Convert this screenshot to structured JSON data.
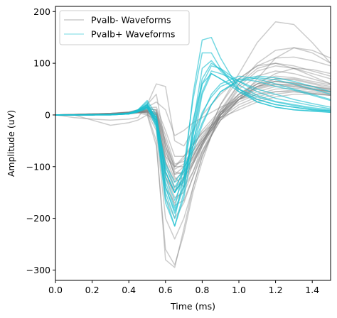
{
  "chart_data": {
    "type": "line",
    "xlabel": "Time (ms)",
    "ylabel": "Amplitude (uV)",
    "xlim": [
      0.0,
      1.5
    ],
    "ylim": [
      -320,
      210
    ],
    "xticks": [
      0.0,
      0.2,
      0.4,
      0.6,
      0.8,
      1.0,
      1.2,
      1.4
    ],
    "xtick_labels": [
      "0.0",
      "0.2",
      "0.4",
      "0.6",
      "0.8",
      "1.0",
      "1.2",
      "1.4"
    ],
    "yticks": [
      -300,
      -200,
      -100,
      0,
      100,
      200
    ],
    "ytick_labels": [
      "−300",
      "−200",
      "−100",
      "0",
      "100",
      "200"
    ],
    "grid": false,
    "legend": {
      "placement": "top-left"
    },
    "colors": {
      "pvalb_minus": "#808080",
      "pvalb_plus": "#17becf",
      "axes": "#000000"
    },
    "x": [
      0.0,
      0.1,
      0.2,
      0.3,
      0.4,
      0.45,
      0.5,
      0.55,
      0.6,
      0.65,
      0.7,
      0.75,
      0.8,
      0.85,
      0.9,
      1.0,
      1.1,
      1.2,
      1.3,
      1.4,
      1.5
    ],
    "series": [
      {
        "name": "Pvalb- Waveforms",
        "color": "#808080",
        "waveforms": [
          [
            0,
            1,
            2,
            3,
            5,
            8,
            15,
            25,
            10,
            -40,
            -30,
            -15,
            -5,
            5,
            15,
            30,
            40,
            45,
            45,
            42,
            38
          ],
          [
            0,
            0,
            1,
            2,
            4,
            8,
            10,
            5,
            -60,
            -100,
            -80,
            -55,
            -35,
            -20,
            -5,
            10,
            25,
            35,
            40,
            40,
            38
          ],
          [
            0,
            1,
            2,
            3,
            5,
            8,
            12,
            10,
            -40,
            -95,
            -90,
            -70,
            -45,
            -25,
            -5,
            20,
            35,
            45,
            48,
            45,
            40
          ],
          [
            0,
            0,
            0,
            1,
            3,
            6,
            10,
            5,
            -50,
            -105,
            -95,
            -70,
            -40,
            -20,
            0,
            25,
            40,
            50,
            52,
            48,
            42
          ],
          [
            0,
            1,
            1,
            2,
            4,
            7,
            8,
            0,
            -70,
            -115,
            -100,
            -75,
            -50,
            -30,
            -10,
            15,
            30,
            40,
            45,
            42,
            38
          ],
          [
            0,
            0,
            1,
            2,
            3,
            5,
            7,
            -10,
            -120,
            -150,
            -120,
            -80,
            -45,
            -20,
            5,
            35,
            55,
            60,
            55,
            50,
            45
          ],
          [
            0,
            1,
            1,
            2,
            3,
            5,
            5,
            -20,
            -140,
            -170,
            -140,
            -95,
            -55,
            -25,
            5,
            40,
            60,
            65,
            60,
            55,
            50
          ],
          [
            0,
            0,
            1,
            1,
            3,
            6,
            8,
            -15,
            -160,
            -200,
            -170,
            -120,
            -70,
            -35,
            0,
            40,
            65,
            75,
            72,
            65,
            58
          ],
          [
            0,
            0,
            1,
            2,
            4,
            6,
            4,
            -30,
            -200,
            -240,
            -200,
            -140,
            -80,
            -40,
            0,
            50,
            75,
            85,
            80,
            70,
            60
          ],
          [
            0,
            0,
            1,
            2,
            3,
            5,
            3,
            -50,
            -280,
            -295,
            -220,
            -140,
            -80,
            -40,
            0,
            55,
            85,
            95,
            90,
            80,
            70
          ],
          [
            0,
            0,
            0,
            1,
            2,
            4,
            0,
            -60,
            -260,
            -290,
            -230,
            -150,
            -90,
            -40,
            5,
            60,
            90,
            100,
            95,
            85,
            75
          ],
          [
            0,
            -5,
            -8,
            -10,
            -8,
            -5,
            20,
            60,
            55,
            -50,
            -60,
            -30,
            0,
            20,
            40,
            70,
            95,
            110,
            112,
            105,
            95
          ],
          [
            0,
            1,
            2,
            3,
            5,
            10,
            20,
            40,
            -60,
            -120,
            -140,
            -110,
            -60,
            -20,
            20,
            80,
            140,
            180,
            175,
            140,
            100
          ],
          [
            0,
            0,
            1,
            2,
            4,
            6,
            8,
            0,
            -90,
            -130,
            -120,
            -95,
            -60,
            -30,
            10,
            60,
            100,
            125,
            130,
            120,
            100
          ],
          [
            0,
            1,
            2,
            3,
            6,
            10,
            15,
            8,
            -60,
            -110,
            -115,
            -90,
            -55,
            -20,
            20,
            70,
            95,
            100,
            90,
            75,
            60
          ],
          [
            0,
            0,
            -10,
            -20,
            -15,
            -10,
            0,
            -10,
            -80,
            -100,
            -85,
            -60,
            -30,
            -10,
            10,
            40,
            60,
            70,
            68,
            60,
            52
          ],
          [
            0,
            0,
            1,
            2,
            5,
            9,
            14,
            15,
            -30,
            -80,
            -80,
            -60,
            -35,
            -15,
            5,
            30,
            45,
            55,
            55,
            50,
            45
          ],
          [
            0,
            0,
            1,
            1,
            3,
            5,
            6,
            -5,
            -90,
            -140,
            -125,
            -90,
            -55,
            -25,
            0,
            35,
            55,
            65,
            62,
            55,
            48
          ],
          [
            0,
            1,
            2,
            2,
            4,
            7,
            10,
            2,
            -80,
            -125,
            -110,
            -80,
            -50,
            -25,
            0,
            30,
            50,
            58,
            58,
            52,
            46
          ],
          [
            0,
            0,
            0,
            1,
            2,
            4,
            6,
            -5,
            -110,
            -160,
            -150,
            -110,
            -70,
            -40,
            -10,
            30,
            55,
            70,
            70,
            62,
            55
          ],
          [
            0,
            0,
            1,
            2,
            4,
            7,
            12,
            10,
            -50,
            -100,
            -100,
            -80,
            -50,
            -25,
            0,
            35,
            60,
            80,
            90,
            88,
            80
          ],
          [
            0,
            0,
            1,
            2,
            3,
            6,
            8,
            0,
            -100,
            -145,
            -130,
            -95,
            -60,
            -30,
            -5,
            30,
            52,
            60,
            58,
            50,
            44
          ],
          [
            0,
            0,
            1,
            2,
            4,
            6,
            8,
            3,
            -70,
            -115,
            -110,
            -85,
            -55,
            -30,
            -5,
            30,
            70,
            110,
            130,
            125,
            110
          ],
          [
            0,
            0,
            1,
            2,
            3,
            5,
            6,
            -10,
            -120,
            -175,
            -165,
            -120,
            -75,
            -40,
            -10,
            30,
            55,
            65,
            62,
            56,
            50
          ]
        ]
      },
      {
        "name": "Pvalb+ Waveforms",
        "color": "#17becf",
        "waveforms": [
          [
            0,
            0,
            0,
            0,
            2,
            8,
            20,
            -20,
            -150,
            -200,
            -120,
            40,
            145,
            150,
            110,
            50,
            25,
            15,
            10,
            8,
            5
          ],
          [
            0,
            0,
            0,
            1,
            3,
            10,
            25,
            -10,
            -130,
            -180,
            -100,
            30,
            120,
            120,
            90,
            45,
            25,
            15,
            10,
            7,
            5
          ],
          [
            0,
            0,
            0,
            1,
            3,
            8,
            18,
            -20,
            -160,
            -215,
            -150,
            -20,
            90,
            105,
            85,
            50,
            30,
            20,
            15,
            10,
            7
          ],
          [
            0,
            0,
            0,
            0,
            2,
            6,
            15,
            -25,
            -170,
            -215,
            -160,
            -60,
            40,
            80,
            70,
            50,
            35,
            25,
            18,
            12,
            8
          ],
          [
            0,
            0,
            0,
            1,
            3,
            9,
            22,
            -15,
            -140,
            -190,
            -140,
            -40,
            60,
            95,
            90,
            65,
            45,
            32,
            25,
            18,
            12
          ],
          [
            0,
            0,
            1,
            1,
            4,
            10,
            28,
            0,
            -120,
            -165,
            -125,
            -40,
            45,
            85,
            80,
            65,
            50,
            40,
            30,
            22,
            15
          ],
          [
            0,
            0,
            0,
            1,
            2,
            7,
            15,
            -10,
            -110,
            -150,
            -120,
            -60,
            0,
            40,
            60,
            75,
            70,
            60,
            50,
            40,
            30
          ],
          [
            0,
            0,
            0,
            1,
            3,
            8,
            18,
            -5,
            -100,
            -140,
            -110,
            -50,
            5,
            35,
            55,
            70,
            65,
            55,
            48,
            38,
            28
          ],
          [
            0,
            0,
            0,
            0,
            2,
            6,
            12,
            -10,
            -110,
            -150,
            -125,
            -70,
            -20,
            20,
            45,
            65,
            72,
            68,
            60,
            50,
            40
          ],
          [
            0,
            0,
            0,
            1,
            2,
            6,
            14,
            -5,
            -95,
            -130,
            -105,
            -60,
            -15,
            20,
            45,
            68,
            75,
            72,
            65,
            55,
            45
          ],
          [
            0,
            0,
            0,
            1,
            3,
            9,
            20,
            -5,
            -110,
            -150,
            -100,
            -10,
            60,
            80,
            70,
            45,
            30,
            20,
            15,
            10,
            8
          ],
          [
            0,
            0,
            0,
            0,
            2,
            7,
            16,
            -15,
            -140,
            -185,
            -135,
            -30,
            70,
            100,
            88,
            58,
            38,
            26,
            20,
            14,
            10
          ]
        ]
      }
    ]
  }
}
